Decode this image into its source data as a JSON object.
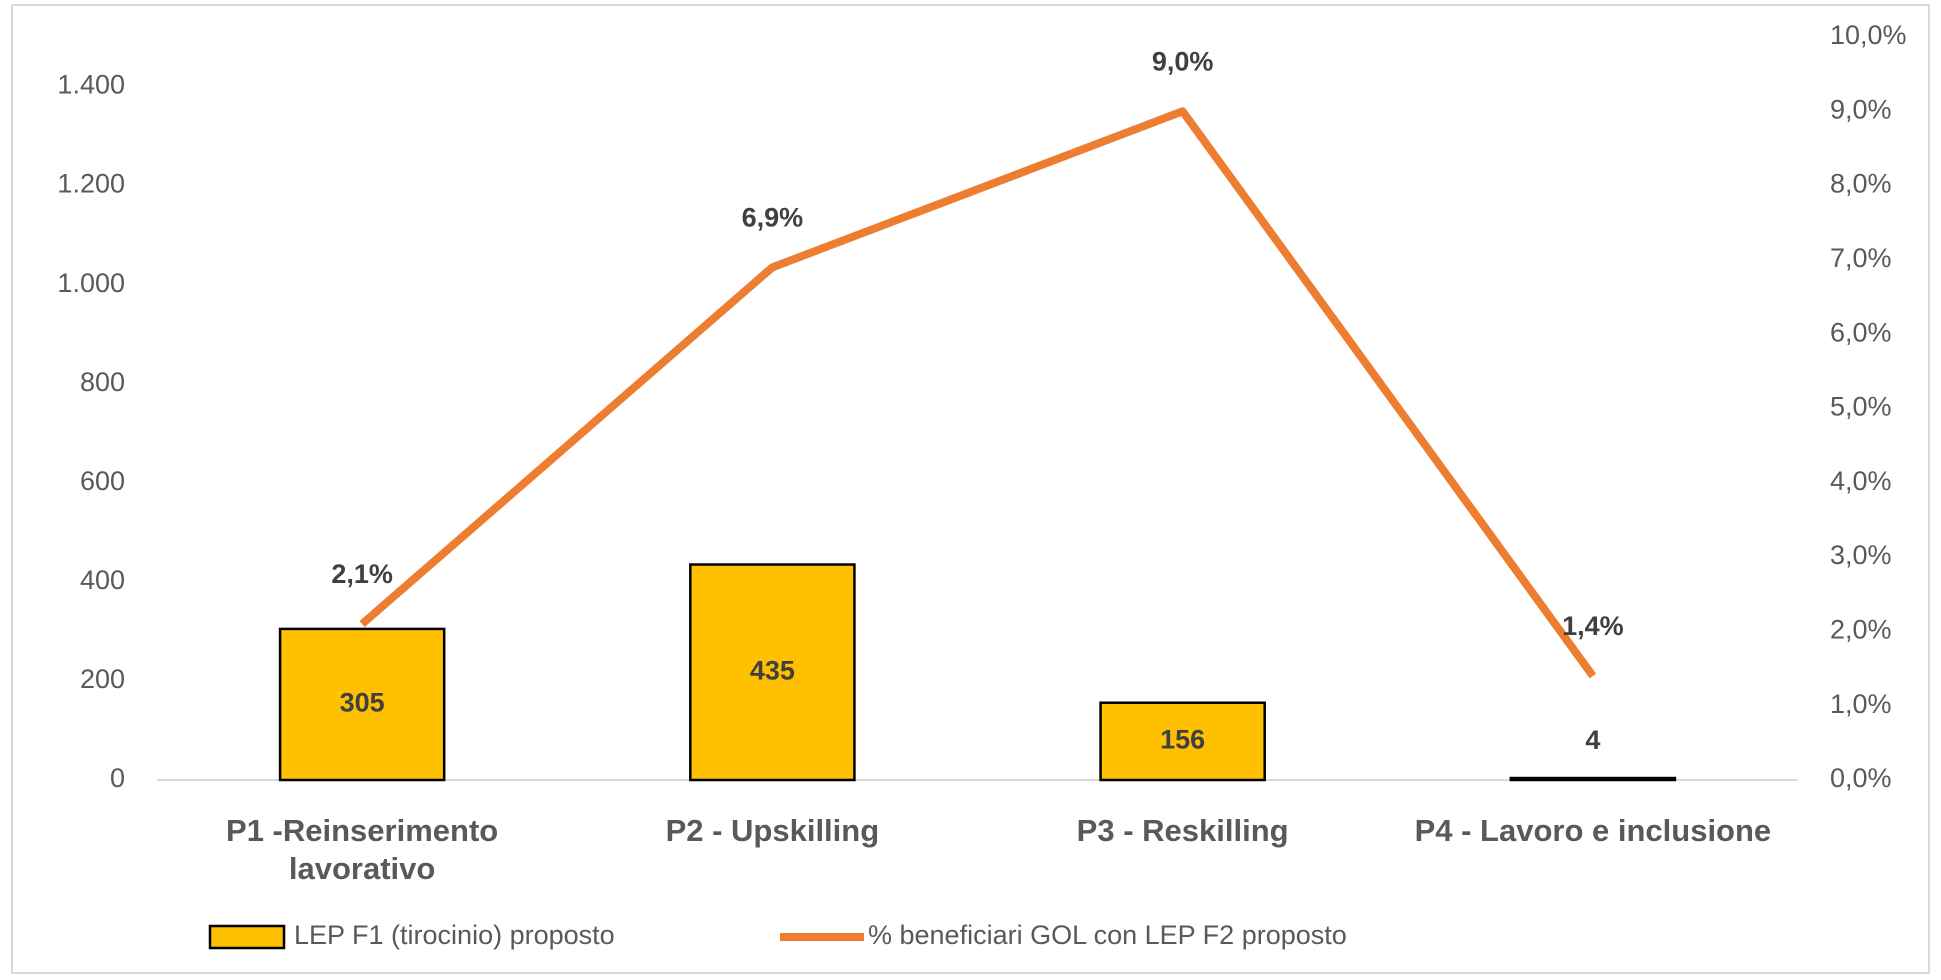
{
  "chart_data": {
    "type": "bar",
    "categories": [
      "P1 -Reinserimento lavorativo",
      "P2 - Upskilling",
      "P3 - Reskilling",
      "P4 - Lavoro e inclusione"
    ],
    "series": [
      {
        "name": "LEP F1 (tirocinio) proposto",
        "type": "bar",
        "color": "#ffc000",
        "values": [
          305,
          435,
          156,
          4
        ]
      },
      {
        "name": "% beneficiari GOL con LEP F2 proposto",
        "type": "line",
        "axis": "y2",
        "color": "#ed7d31",
        "values": [
          2.1,
          6.9,
          9.0,
          1.4
        ],
        "value_labels": [
          "2,1%",
          "6,9%",
          "9,0%",
          "1,4%"
        ]
      }
    ],
    "ylim": [
      0,
      1500
    ],
    "yticks": [
      0,
      200,
      400,
      600,
      800,
      {
        "value": 1000,
        "label": "1.000"
      },
      {
        "value": 1200,
        "label": "1.200"
      },
      {
        "value": 1400,
        "label": "1.400"
      }
    ],
    "y2lim": [
      0,
      10
    ],
    "y2ticks": [
      {
        "value": 0,
        "label": "0,0%"
      },
      {
        "value": 1,
        "label": "1,0%"
      },
      {
        "value": 2,
        "label": "2,0%"
      },
      {
        "value": 3,
        "label": "3,0%"
      },
      {
        "value": 4,
        "label": "4,0%"
      },
      {
        "value": 5,
        "label": "5,0%"
      },
      {
        "value": 6,
        "label": "6,0%"
      },
      {
        "value": 7,
        "label": "7,0%"
      },
      {
        "value": 8,
        "label": "8,0%"
      },
      {
        "value": 9,
        "label": "9,0%"
      },
      {
        "value": 10,
        "label": "10,0%"
      }
    ],
    "grid": false,
    "legend": "bottom"
  }
}
